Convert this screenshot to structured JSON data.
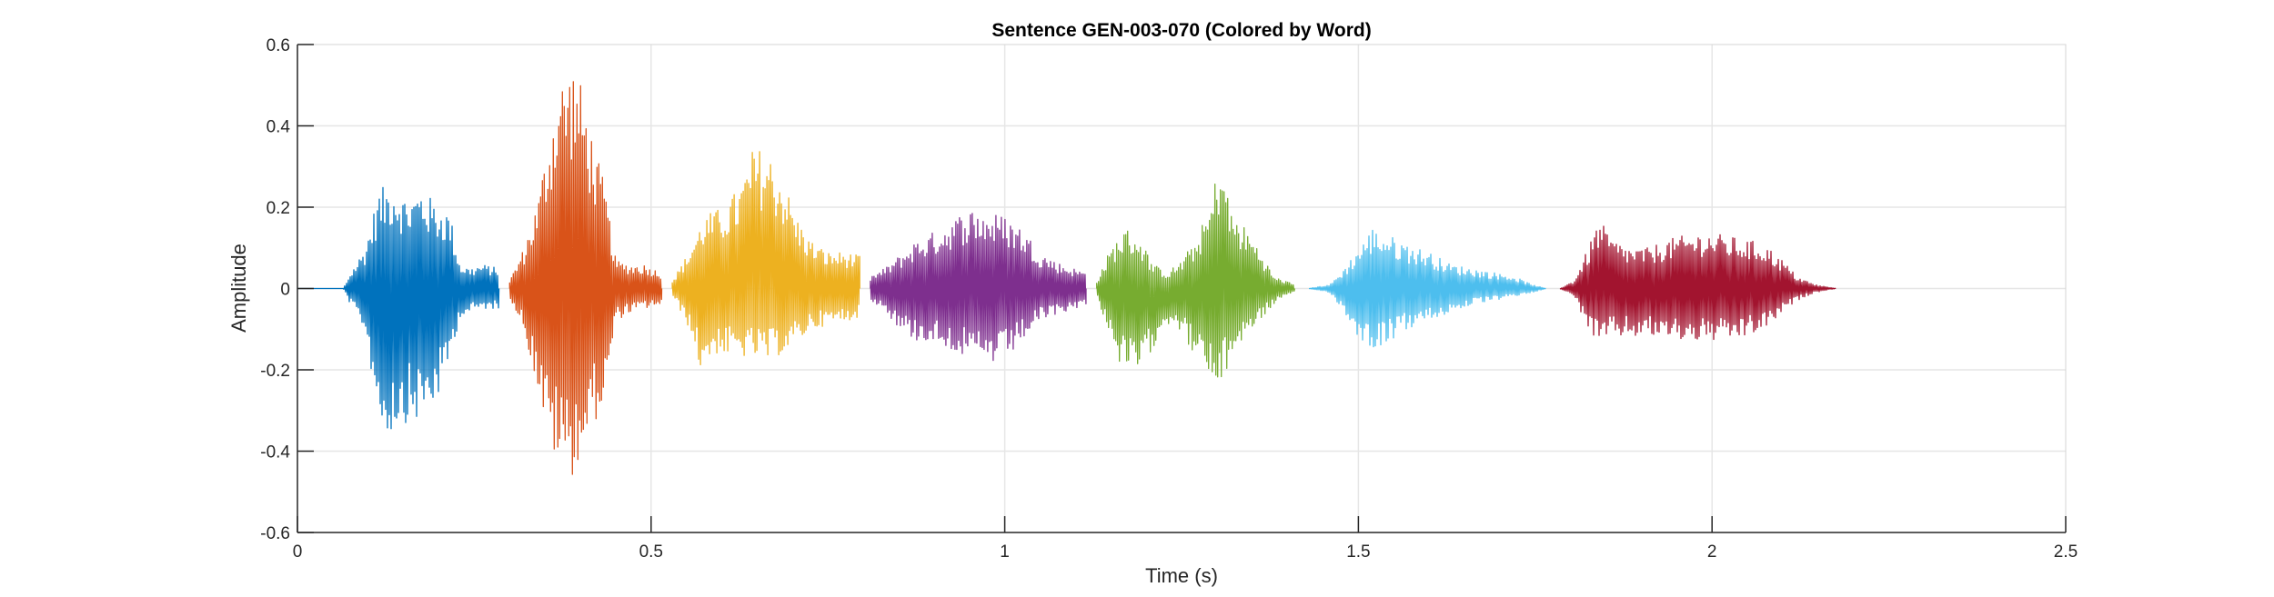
{
  "chart_data": {
    "type": "line",
    "title": "Sentence GEN-003-070 (Colored by Word)",
    "xlabel": "Time (s)",
    "ylabel": "Amplitude",
    "xlim": [
      0,
      2.5
    ],
    "ylim": [
      -0.6,
      0.6
    ],
    "xticks": [
      0,
      0.5,
      1,
      1.5,
      2,
      2.5
    ],
    "xtick_labels": [
      "0",
      "0.5",
      "1",
      "1.5",
      "2",
      "2.5"
    ],
    "yticks": [
      -0.6,
      -0.4,
      -0.2,
      0,
      0.2,
      0.4,
      0.6
    ],
    "ytick_labels": [
      "-0.6",
      "-0.4",
      "-0.2",
      "0",
      "0.2",
      "0.4",
      "0.6"
    ],
    "grid": true,
    "series": [
      {
        "color": "#0072BD",
        "start": 0.0,
        "end": 0.285,
        "envelope": [
          [
            0.0,
            0.0
          ],
          [
            0.065,
            0.0
          ],
          [
            0.075,
            0.04
          ],
          [
            0.095,
            0.1
          ],
          [
            0.115,
            0.24
          ],
          [
            0.135,
            0.27
          ],
          [
            0.155,
            0.22
          ],
          [
            0.175,
            0.25
          ],
          [
            0.195,
            0.21
          ],
          [
            0.215,
            0.19
          ],
          [
            0.23,
            0.06
          ],
          [
            0.245,
            0.05
          ],
          [
            0.26,
            0.06
          ],
          [
            0.285,
            0.05
          ]
        ],
        "envelope_neg": [
          [
            0.0,
            0.0
          ],
          [
            0.065,
            0.0
          ],
          [
            0.075,
            -0.04
          ],
          [
            0.095,
            -0.1
          ],
          [
            0.115,
            -0.32
          ],
          [
            0.125,
            -0.37
          ],
          [
            0.145,
            -0.33
          ],
          [
            0.165,
            -0.33
          ],
          [
            0.185,
            -0.31
          ],
          [
            0.205,
            -0.25
          ],
          [
            0.23,
            -0.07
          ],
          [
            0.245,
            -0.06
          ],
          [
            0.26,
            -0.05
          ],
          [
            0.285,
            -0.05
          ]
        ]
      },
      {
        "color": "#D95319",
        "start": 0.3,
        "end": 0.515,
        "envelope": [
          [
            0.3,
            0.02
          ],
          [
            0.32,
            0.1
          ],
          [
            0.34,
            0.22
          ],
          [
            0.355,
            0.38
          ],
          [
            0.37,
            0.52
          ],
          [
            0.39,
            0.56
          ],
          [
            0.405,
            0.48
          ],
          [
            0.42,
            0.35
          ],
          [
            0.435,
            0.25
          ],
          [
            0.45,
            0.07
          ],
          [
            0.47,
            0.06
          ],
          [
            0.49,
            0.06
          ],
          [
            0.515,
            0.04
          ]
        ],
        "envelope_neg": [
          [
            0.3,
            -0.02
          ],
          [
            0.32,
            -0.1
          ],
          [
            0.34,
            -0.25
          ],
          [
            0.355,
            -0.38
          ],
          [
            0.37,
            -0.44
          ],
          [
            0.39,
            -0.46
          ],
          [
            0.405,
            -0.4
          ],
          [
            0.42,
            -0.33
          ],
          [
            0.435,
            -0.28
          ],
          [
            0.45,
            -0.08
          ],
          [
            0.47,
            -0.06
          ],
          [
            0.49,
            -0.05
          ],
          [
            0.515,
            -0.04
          ]
        ]
      },
      {
        "color": "#EDB120",
        "start": 0.53,
        "end": 0.795,
        "envelope": [
          [
            0.53,
            0.02
          ],
          [
            0.55,
            0.08
          ],
          [
            0.575,
            0.18
          ],
          [
            0.6,
            0.2
          ],
          [
            0.625,
            0.25
          ],
          [
            0.645,
            0.35
          ],
          [
            0.665,
            0.34
          ],
          [
            0.685,
            0.28
          ],
          [
            0.705,
            0.18
          ],
          [
            0.725,
            0.12
          ],
          [
            0.75,
            0.09
          ],
          [
            0.775,
            0.09
          ],
          [
            0.795,
            0.08
          ]
        ],
        "envelope_neg": [
          [
            0.53,
            -0.02
          ],
          [
            0.55,
            -0.08
          ],
          [
            0.57,
            -0.2
          ],
          [
            0.59,
            -0.16
          ],
          [
            0.62,
            -0.17
          ],
          [
            0.645,
            -0.17
          ],
          [
            0.665,
            -0.18
          ],
          [
            0.685,
            -0.16
          ],
          [
            0.705,
            -0.14
          ],
          [
            0.725,
            -0.1
          ],
          [
            0.75,
            -0.09
          ],
          [
            0.775,
            -0.08
          ],
          [
            0.795,
            -0.07
          ]
        ]
      },
      {
        "color": "#7E2F8E",
        "start": 0.81,
        "end": 1.115,
        "envelope": [
          [
            0.81,
            0.03
          ],
          [
            0.83,
            0.05
          ],
          [
            0.85,
            0.08
          ],
          [
            0.875,
            0.12
          ],
          [
            0.9,
            0.14
          ],
          [
            0.925,
            0.17
          ],
          [
            0.95,
            0.2
          ],
          [
            0.975,
            0.19
          ],
          [
            1.0,
            0.18
          ],
          [
            1.025,
            0.15
          ],
          [
            1.05,
            0.09
          ],
          [
            1.08,
            0.06
          ],
          [
            1.115,
            0.04
          ]
        ],
        "envelope_neg": [
          [
            0.81,
            -0.03
          ],
          [
            0.83,
            -0.05
          ],
          [
            0.85,
            -0.1
          ],
          [
            0.875,
            -0.13
          ],
          [
            0.9,
            -0.13
          ],
          [
            0.925,
            -0.15
          ],
          [
            0.95,
            -0.18
          ],
          [
            0.975,
            -0.19
          ],
          [
            1.0,
            -0.18
          ],
          [
            1.025,
            -0.13
          ],
          [
            1.05,
            -0.08
          ],
          [
            1.08,
            -0.06
          ],
          [
            1.115,
            -0.04
          ]
        ]
      },
      {
        "color": "#77AC30",
        "start": 1.13,
        "end": 1.41,
        "envelope": [
          [
            1.13,
            0.02
          ],
          [
            1.15,
            0.1
          ],
          [
            1.17,
            0.15
          ],
          [
            1.19,
            0.13
          ],
          [
            1.21,
            0.06
          ],
          [
            1.23,
            0.04
          ],
          [
            1.25,
            0.07
          ],
          [
            1.27,
            0.12
          ],
          [
            1.29,
            0.2
          ],
          [
            1.305,
            0.34
          ],
          [
            1.32,
            0.19
          ],
          [
            1.34,
            0.15
          ],
          [
            1.36,
            0.1
          ],
          [
            1.38,
            0.03
          ],
          [
            1.41,
            0.01
          ]
        ],
        "envelope_neg": [
          [
            1.13,
            -0.02
          ],
          [
            1.15,
            -0.12
          ],
          [
            1.165,
            -0.2
          ],
          [
            1.18,
            -0.22
          ],
          [
            1.2,
            -0.19
          ],
          [
            1.22,
            -0.1
          ],
          [
            1.24,
            -0.08
          ],
          [
            1.26,
            -0.14
          ],
          [
            1.28,
            -0.2
          ],
          [
            1.3,
            -0.26
          ],
          [
            1.315,
            -0.2
          ],
          [
            1.33,
            -0.14
          ],
          [
            1.36,
            -0.08
          ],
          [
            1.385,
            -0.03
          ],
          [
            1.41,
            -0.01
          ]
        ]
      },
      {
        "color": "#4DBEEE",
        "start": 1.43,
        "end": 1.765,
        "envelope": [
          [
            1.43,
            0.0
          ],
          [
            1.46,
            0.01
          ],
          [
            1.48,
            0.05
          ],
          [
            1.5,
            0.1
          ],
          [
            1.52,
            0.15
          ],
          [
            1.545,
            0.13
          ],
          [
            1.57,
            0.11
          ],
          [
            1.6,
            0.09
          ],
          [
            1.63,
            0.06
          ],
          [
            1.66,
            0.05
          ],
          [
            1.69,
            0.04
          ],
          [
            1.72,
            0.03
          ],
          [
            1.745,
            0.01
          ],
          [
            1.765,
            0.0
          ]
        ],
        "envelope_neg": [
          [
            1.43,
            0.0
          ],
          [
            1.46,
            -0.01
          ],
          [
            1.48,
            -0.06
          ],
          [
            1.5,
            -0.12
          ],
          [
            1.52,
            -0.15
          ],
          [
            1.545,
            -0.13
          ],
          [
            1.57,
            -0.1
          ],
          [
            1.6,
            -0.08
          ],
          [
            1.63,
            -0.06
          ],
          [
            1.66,
            -0.04
          ],
          [
            1.69,
            -0.03
          ],
          [
            1.72,
            -0.02
          ],
          [
            1.745,
            -0.01
          ],
          [
            1.765,
            0.0
          ]
        ]
      },
      {
        "color": "#A2142F",
        "start": 1.785,
        "end": 2.175,
        "envelope": [
          [
            1.785,
            0.0
          ],
          [
            1.805,
            0.02
          ],
          [
            1.825,
            0.1
          ],
          [
            1.84,
            0.17
          ],
          [
            1.86,
            0.12
          ],
          [
            1.885,
            0.1
          ],
          [
            1.91,
            0.1
          ],
          [
            1.935,
            0.12
          ],
          [
            1.96,
            0.13
          ],
          [
            1.99,
            0.14
          ],
          [
            2.02,
            0.13
          ],
          [
            2.05,
            0.12
          ],
          [
            2.075,
            0.11
          ],
          [
            2.1,
            0.07
          ],
          [
            2.12,
            0.03
          ],
          [
            2.145,
            0.01
          ],
          [
            2.175,
            0.0
          ]
        ],
        "envelope_neg": [
          [
            1.785,
            0.0
          ],
          [
            1.805,
            -0.02
          ],
          [
            1.825,
            -0.1
          ],
          [
            1.84,
            -0.14
          ],
          [
            1.86,
            -0.12
          ],
          [
            1.885,
            -0.12
          ],
          [
            1.91,
            -0.12
          ],
          [
            1.935,
            -0.12
          ],
          [
            1.96,
            -0.13
          ],
          [
            1.99,
            -0.13
          ],
          [
            2.02,
            -0.13
          ],
          [
            2.05,
            -0.12
          ],
          [
            2.075,
            -0.1
          ],
          [
            2.1,
            -0.06
          ],
          [
            2.12,
            -0.03
          ],
          [
            2.145,
            -0.01
          ],
          [
            2.175,
            0.0
          ]
        ]
      }
    ]
  }
}
